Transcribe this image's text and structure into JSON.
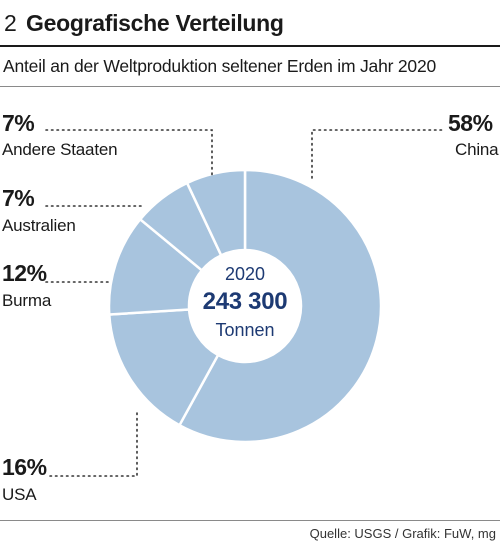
{
  "header": {
    "number": "2",
    "title": "Geografische Verteilung"
  },
  "subtitle": "Anteil an der Weltproduktion seltener Erden im Jahr 2020",
  "chart_data": {
    "type": "pie",
    "style": "donut",
    "center": {
      "year": "2020",
      "total": "243 300",
      "unit": "Tonnen"
    },
    "slices": [
      {
        "label": "China",
        "value": 58,
        "display": "58%"
      },
      {
        "label": "USA",
        "value": 16,
        "display": "16%"
      },
      {
        "label": "Burma",
        "value": 12,
        "display": "12%"
      },
      {
        "label": "Australien",
        "value": 7,
        "display": "7%"
      },
      {
        "label": "Andere Staaten",
        "value": 7,
        "display": "7%"
      }
    ],
    "colors": {
      "fill": "#a8c4de",
      "separator": "#ffffff",
      "leader": "#333333"
    }
  },
  "source": "Quelle: USGS / Grafik: FuW, mg"
}
